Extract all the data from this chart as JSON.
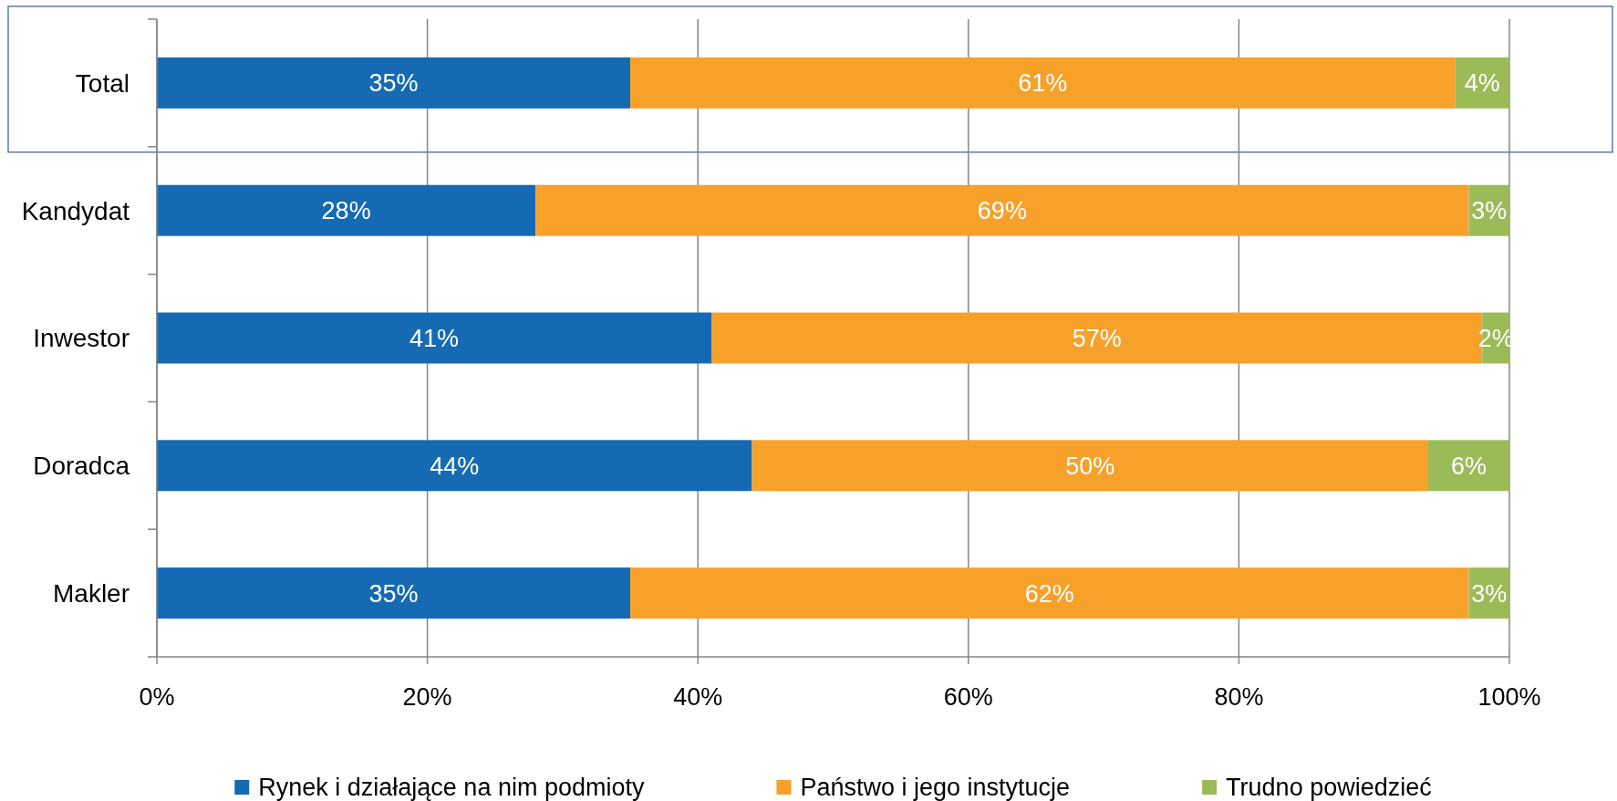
{
  "chart_data": {
    "type": "bar",
    "orientation": "horizontal",
    "stacked": true,
    "categories": [
      "Total",
      "Kandydat",
      "Inwestor",
      "Doradca",
      "Makler"
    ],
    "series": [
      {
        "name": "Rynek i działające na nim podmioty",
        "color": "#156ab3",
        "values": [
          35,
          28,
          41,
          44,
          35
        ],
        "value_labels": [
          "35%",
          "28%",
          "41%",
          "44%",
          "35%"
        ]
      },
      {
        "name": "Państwo i jego instytucje",
        "color": "#f7a12b",
        "values": [
          61,
          69,
          57,
          50,
          62
        ],
        "value_labels": [
          "61%",
          "69%",
          "57%",
          "50%",
          "62%"
        ]
      },
      {
        "name": "Trudno powiedzieć",
        "color": "#9bbb59",
        "values": [
          4,
          3,
          2,
          6,
          3
        ],
        "value_labels": [
          "4%",
          "3%",
          "2%",
          "6%",
          "3%"
        ]
      }
    ],
    "xlim": [
      0,
      100
    ],
    "xticks": [
      {
        "value": 0,
        "label": "0%"
      },
      {
        "value": 20,
        "label": "20%"
      },
      {
        "value": 40,
        "label": "40%"
      },
      {
        "value": 60,
        "label": "60%"
      },
      {
        "value": 80,
        "label": "80%"
      },
      {
        "value": 100,
        "label": "100%"
      }
    ],
    "grid": "x",
    "legend": "bottom"
  }
}
